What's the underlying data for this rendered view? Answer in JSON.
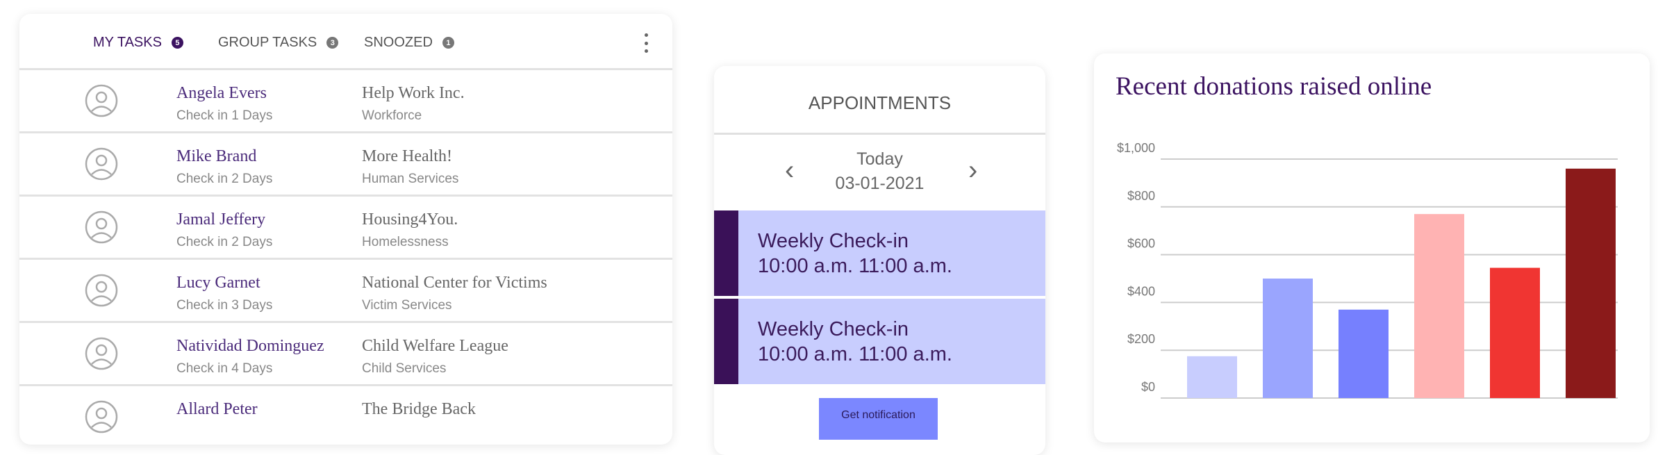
{
  "tasks": {
    "tabs": [
      {
        "label": "MY TASKS",
        "count": "5"
      },
      {
        "label": "GROUP TASKS",
        "count": "3"
      },
      {
        "label": "SNOOZED",
        "count": "1"
      }
    ],
    "rows": [
      {
        "name": "Angela Evers",
        "checkin": "Check in 1 Days",
        "org": "Help Work Inc.",
        "category": "Workforce"
      },
      {
        "name": "Mike Brand",
        "checkin": "Check in 2 Days",
        "org": "More Health!",
        "category": "Human Services"
      },
      {
        "name": "Jamal Jeffery",
        "checkin": "Check in 2 Days",
        "org": "Housing4You.",
        "category": "Homelessness"
      },
      {
        "name": "Lucy Garnet",
        "checkin": "Check in 3 Days",
        "org": "National Center for Victims",
        "category": "Victim Services"
      },
      {
        "name": "Natividad Dominguez",
        "checkin": "Check in 4 Days",
        "org": "Child Welfare League",
        "category": "Child Services"
      },
      {
        "name": "Allard Peter",
        "checkin": "",
        "org": "The Bridge Back",
        "category": ""
      }
    ]
  },
  "appointments": {
    "title": "APPOINTMENTS",
    "day": "Today",
    "date": "03-01-2021",
    "items": [
      {
        "title": "Weekly Check-in",
        "time": "10:00 a.m.  11:00 a.m."
      },
      {
        "title": "Weekly Check-in",
        "time": "10:00 a.m.  11:00 a.m."
      }
    ],
    "button": "Get notification"
  },
  "chart_data": {
    "type": "bar",
    "title": "Recent donations raised online",
    "categories": [
      "",
      "",
      "",
      "",
      "",
      ""
    ],
    "values": [
      175,
      500,
      370,
      770,
      545,
      960
    ],
    "colors": [
      "#c8cdfe",
      "#9aa5fe",
      "#7680fe",
      "#ffb3b3",
      "#f03532",
      "#8b1a1a"
    ],
    "ylim": [
      0,
      1000
    ],
    "yticks": [
      "$0",
      "$200",
      "$400",
      "$600",
      "$800",
      "$1,000"
    ],
    "grid": true
  }
}
